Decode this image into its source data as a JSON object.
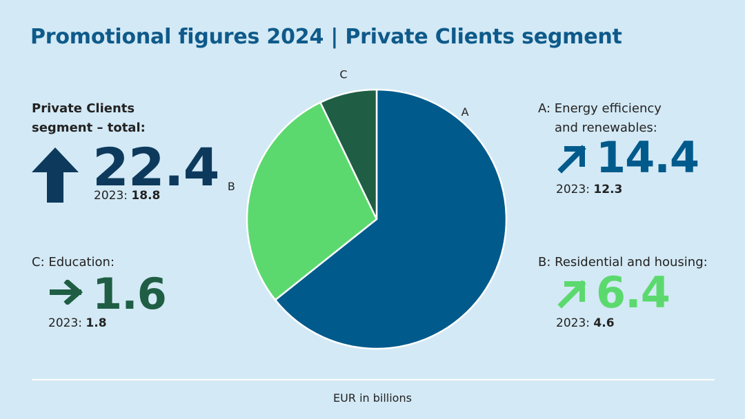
{
  "title": "Promotional figures 2024 | Private Clients segment",
  "total": {
    "label_line1": "Private Clients",
    "label_line2": "segment – total:",
    "value": "22.4",
    "prev_label": "2023:",
    "prev_value": "18.8",
    "icon": "arrow-up-icon",
    "color": "#0d3a5c"
  },
  "categories": {
    "A": {
      "label_line1": "A: Energy efficiency",
      "label_line2": "and renewables:",
      "value": "14.4",
      "prev_label": "2023:",
      "prev_value": "12.3",
      "icon": "arrow-up-right-icon",
      "color": "#005a8c"
    },
    "B": {
      "label_line1": "B: Residential and housing:",
      "value": "6.4",
      "prev_label": "2023:",
      "prev_value": "4.6",
      "icon": "arrow-up-right-icon",
      "color": "#5cd96e"
    },
    "C": {
      "label_line1": "C: Education:",
      "value": "1.6",
      "prev_label": "2023:",
      "prev_value": "1.8",
      "icon": "arrow-right-icon",
      "color": "#1f5e44"
    }
  },
  "footer": "EUR in billions",
  "chart_data": {
    "type": "pie",
    "categories": [
      "A",
      "B",
      "C"
    ],
    "values": [
      14.4,
      6.4,
      1.6
    ],
    "colors": [
      "#005a8c",
      "#5cd96e",
      "#1f5e44"
    ],
    "start": "12 o'clock",
    "direction": "clockwise"
  }
}
